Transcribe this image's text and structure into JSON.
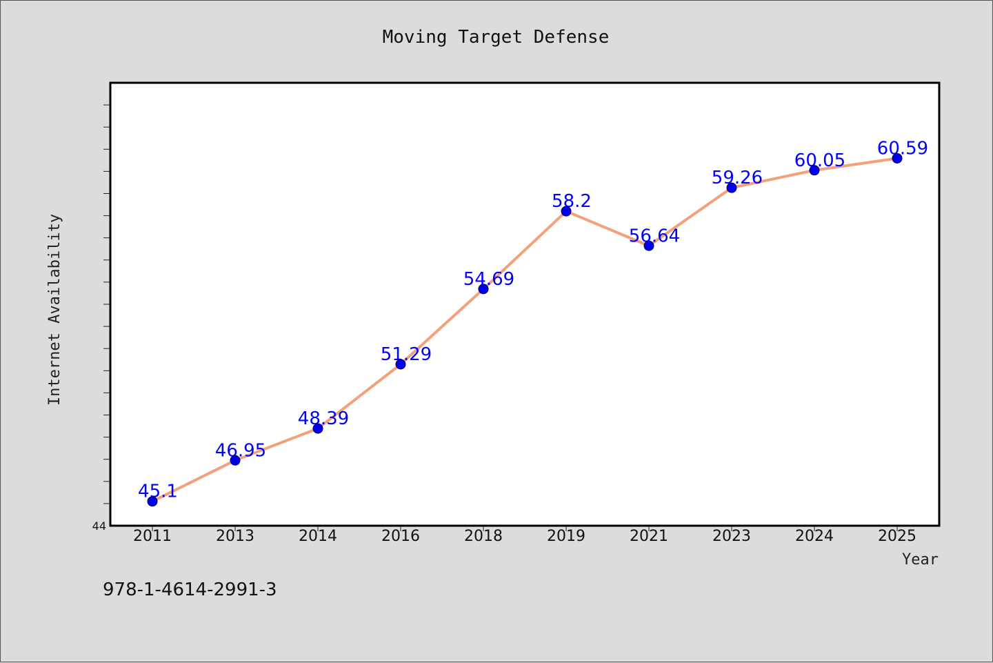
{
  "chart_data": {
    "type": "line",
    "title": "Moving Target Defense",
    "xlabel": "Year",
    "ylabel": "Internet Availability",
    "categories": [
      "2011",
      "2013",
      "2014",
      "2016",
      "2018",
      "2019",
      "2021",
      "2023",
      "2024",
      "2025"
    ],
    "series": [
      {
        "values": [
          45.1,
          46.95,
          48.39,
          51.29,
          54.69,
          58.2,
          56.64,
          59.26,
          60.05,
          60.59
        ],
        "line_color": "#f4a07a",
        "marker_color": "#0000ee"
      }
    ],
    "data_labels": [
      "45.1",
      "46.95",
      "48.39",
      "51.29",
      "54.69",
      "58.2",
      "56.64",
      "59.26",
      "60.05",
      "60.59"
    ],
    "ylim": [
      44,
      64
    ],
    "y_tick_labels": [
      "44"
    ],
    "grid": false,
    "legend": "none"
  },
  "footer_text": "978-1-4614-2991-3"
}
